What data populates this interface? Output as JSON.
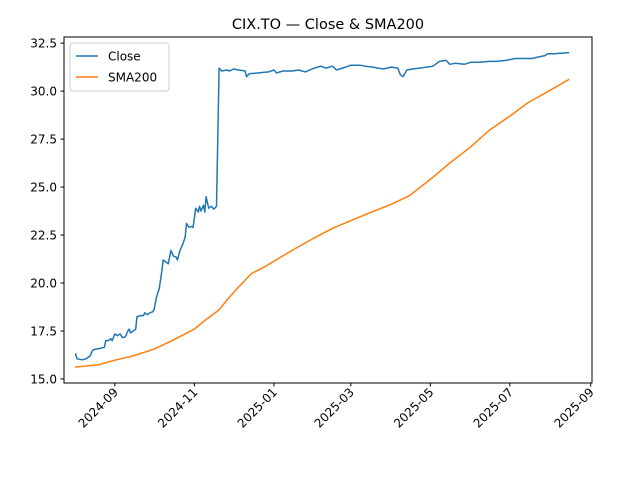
{
  "chart_data": {
    "type": "line",
    "title": "CIX.TO — Close & SMA200",
    "xlabel": "",
    "ylabel": "",
    "xlim": [
      "2024-07-24",
      "2025-09-02"
    ],
    "ylim": [
      14.79,
      32.82
    ],
    "x_ticks": [
      {
        "date": "2024-09-01",
        "label": "2024-09"
      },
      {
        "date": "2024-11-01",
        "label": "2024-11"
      },
      {
        "date": "2025-01-01",
        "label": "2025-01"
      },
      {
        "date": "2025-03-01",
        "label": "2025-03"
      },
      {
        "date": "2025-05-01",
        "label": "2025-05"
      },
      {
        "date": "2025-07-01",
        "label": "2025-07"
      },
      {
        "date": "2025-09-01",
        "label": "2025-09"
      }
    ],
    "y_ticks": [
      {
        "value": 15.0,
        "label": "15.0"
      },
      {
        "value": 17.5,
        "label": "17.5"
      },
      {
        "value": 20.0,
        "label": "20.0"
      },
      {
        "value": 22.5,
        "label": "22.5"
      },
      {
        "value": 25.0,
        "label": "25.0"
      },
      {
        "value": 27.5,
        "label": "27.5"
      },
      {
        "value": 30.0,
        "label": "30.0"
      },
      {
        "value": 32.5,
        "label": "32.5"
      }
    ],
    "legend": {
      "position": "upper-left"
    },
    "series": [
      {
        "name": "Close",
        "color": "#1f77b4",
        "points": [
          [
            "2024-08-02",
            16.3
          ],
          [
            "2024-08-03",
            16.05
          ],
          [
            "2024-08-07",
            16.0
          ],
          [
            "2024-08-10",
            16.05
          ],
          [
            "2024-08-13",
            16.2
          ],
          [
            "2024-08-15",
            16.5
          ],
          [
            "2024-08-17",
            16.55
          ],
          [
            "2024-08-21",
            16.6
          ],
          [
            "2024-08-24",
            16.65
          ],
          [
            "2024-08-25",
            17.0
          ],
          [
            "2024-08-27",
            17.0
          ],
          [
            "2024-08-29",
            17.1
          ],
          [
            "2024-08-30",
            17.0
          ],
          [
            "2024-09-01",
            17.35
          ],
          [
            "2024-09-03",
            17.25
          ],
          [
            "2024-09-05",
            17.35
          ],
          [
            "2024-09-07",
            17.15
          ],
          [
            "2024-09-09",
            17.2
          ],
          [
            "2024-09-11",
            17.5
          ],
          [
            "2024-09-12",
            17.6
          ],
          [
            "2024-09-13",
            17.4
          ],
          [
            "2024-09-15",
            17.5
          ],
          [
            "2024-09-17",
            17.6
          ],
          [
            "2024-09-18",
            18.25
          ],
          [
            "2024-09-21",
            18.3
          ],
          [
            "2024-09-23",
            18.3
          ],
          [
            "2024-09-24",
            18.45
          ],
          [
            "2024-09-26",
            18.35
          ],
          [
            "2024-09-28",
            18.45
          ],
          [
            "2024-09-30",
            18.5
          ],
          [
            "2024-10-01",
            18.6
          ],
          [
            "2024-10-03",
            19.3
          ],
          [
            "2024-10-05",
            19.7
          ],
          [
            "2024-10-07",
            20.6
          ],
          [
            "2024-10-08",
            21.2
          ],
          [
            "2024-10-10",
            21.1
          ],
          [
            "2024-10-12",
            21.0
          ],
          [
            "2024-10-14",
            21.7
          ],
          [
            "2024-10-16",
            21.4
          ],
          [
            "2024-10-18",
            21.35
          ],
          [
            "2024-10-19",
            21.2
          ],
          [
            "2024-10-21",
            21.7
          ],
          [
            "2024-10-23",
            22.0
          ],
          [
            "2024-10-25",
            22.4
          ],
          [
            "2024-10-26",
            23.1
          ],
          [
            "2024-10-28",
            22.9
          ],
          [
            "2024-10-30",
            22.95
          ],
          [
            "2024-10-31",
            22.9
          ],
          [
            "2024-11-02",
            23.9
          ],
          [
            "2024-11-04",
            23.7
          ],
          [
            "2024-11-05",
            24.0
          ],
          [
            "2024-11-06",
            23.75
          ],
          [
            "2024-11-08",
            24.05
          ],
          [
            "2024-11-09",
            23.7
          ],
          [
            "2024-11-10",
            24.5
          ],
          [
            "2024-11-12",
            23.9
          ],
          [
            "2024-11-14",
            24.0
          ],
          [
            "2024-11-16",
            23.85
          ],
          [
            "2024-11-18",
            24.0
          ],
          [
            "2024-11-20",
            31.2
          ],
          [
            "2024-11-22",
            31.05
          ],
          [
            "2024-11-26",
            31.1
          ],
          [
            "2024-11-28",
            31.05
          ],
          [
            "2024-12-01",
            31.15
          ],
          [
            "2024-12-05",
            31.1
          ],
          [
            "2024-12-10",
            31.05
          ],
          [
            "2024-12-11",
            30.75
          ],
          [
            "2024-12-13",
            30.9
          ],
          [
            "2024-12-20",
            30.95
          ],
          [
            "2024-12-28",
            31.0
          ],
          [
            "2025-01-01",
            31.1
          ],
          [
            "2025-01-03",
            30.95
          ],
          [
            "2025-01-08",
            31.05
          ],
          [
            "2025-01-15",
            31.05
          ],
          [
            "2025-01-20",
            31.1
          ],
          [
            "2025-01-25",
            31.0
          ],
          [
            "2025-02-01",
            31.2
          ],
          [
            "2025-02-06",
            31.3
          ],
          [
            "2025-02-10",
            31.2
          ],
          [
            "2025-02-15",
            31.3
          ],
          [
            "2025-02-18",
            31.1
          ],
          [
            "2025-02-25",
            31.25
          ],
          [
            "2025-03-01",
            31.35
          ],
          [
            "2025-03-08",
            31.35
          ],
          [
            "2025-03-12",
            31.3
          ],
          [
            "2025-03-18",
            31.25
          ],
          [
            "2025-03-22",
            31.2
          ],
          [
            "2025-03-26",
            31.15
          ],
          [
            "2025-04-01",
            31.25
          ],
          [
            "2025-04-06",
            31.2
          ],
          [
            "2025-04-08",
            30.85
          ],
          [
            "2025-04-10",
            30.75
          ],
          [
            "2025-04-13",
            31.1
          ],
          [
            "2025-04-17",
            31.15
          ],
          [
            "2025-04-23",
            31.2
          ],
          [
            "2025-04-28",
            31.25
          ],
          [
            "2025-05-03",
            31.3
          ],
          [
            "2025-05-08",
            31.55
          ],
          [
            "2025-05-13",
            31.6
          ],
          [
            "2025-05-16",
            31.4
          ],
          [
            "2025-05-20",
            31.45
          ],
          [
            "2025-05-27",
            31.4
          ],
          [
            "2025-06-01",
            31.5
          ],
          [
            "2025-06-08",
            31.5
          ],
          [
            "2025-06-15",
            31.55
          ],
          [
            "2025-06-20",
            31.55
          ],
          [
            "2025-06-28",
            31.6
          ],
          [
            "2025-07-05",
            31.7
          ],
          [
            "2025-07-12",
            31.7
          ],
          [
            "2025-07-18",
            31.7
          ],
          [
            "2025-07-24",
            31.8
          ],
          [
            "2025-07-28",
            31.85
          ],
          [
            "2025-07-30",
            31.95
          ],
          [
            "2025-08-04",
            31.95
          ],
          [
            "2025-08-10",
            31.98
          ],
          [
            "2025-08-15",
            32.0
          ]
        ]
      },
      {
        "name": "SMA200",
        "color": "#ff7f0e",
        "points": [
          [
            "2024-08-02",
            15.62
          ],
          [
            "2024-08-20",
            15.75
          ],
          [
            "2024-09-01",
            15.98
          ],
          [
            "2024-09-15",
            16.2
          ],
          [
            "2024-10-01",
            16.55
          ],
          [
            "2024-10-15",
            17.0
          ],
          [
            "2024-11-01",
            17.6
          ],
          [
            "2024-11-10",
            18.1
          ],
          [
            "2024-11-20",
            18.6
          ],
          [
            "2024-11-27",
            19.2
          ],
          [
            "2024-12-05",
            19.8
          ],
          [
            "2024-12-15",
            20.5
          ],
          [
            "2024-12-25",
            20.85
          ],
          [
            "2025-01-05",
            21.3
          ],
          [
            "2025-01-20",
            21.9
          ],
          [
            "2025-02-01",
            22.35
          ],
          [
            "2025-02-15",
            22.85
          ],
          [
            "2025-03-01",
            23.25
          ],
          [
            "2025-03-15",
            23.65
          ],
          [
            "2025-04-01",
            24.1
          ],
          [
            "2025-04-15",
            24.55
          ],
          [
            "2025-05-01",
            25.4
          ],
          [
            "2025-05-15",
            26.2
          ],
          [
            "2025-06-01",
            27.1
          ],
          [
            "2025-06-15",
            27.95
          ],
          [
            "2025-07-01",
            28.7
          ],
          [
            "2025-07-15",
            29.4
          ],
          [
            "2025-08-01",
            30.05
          ],
          [
            "2025-08-15",
            30.6
          ]
        ]
      }
    ]
  }
}
